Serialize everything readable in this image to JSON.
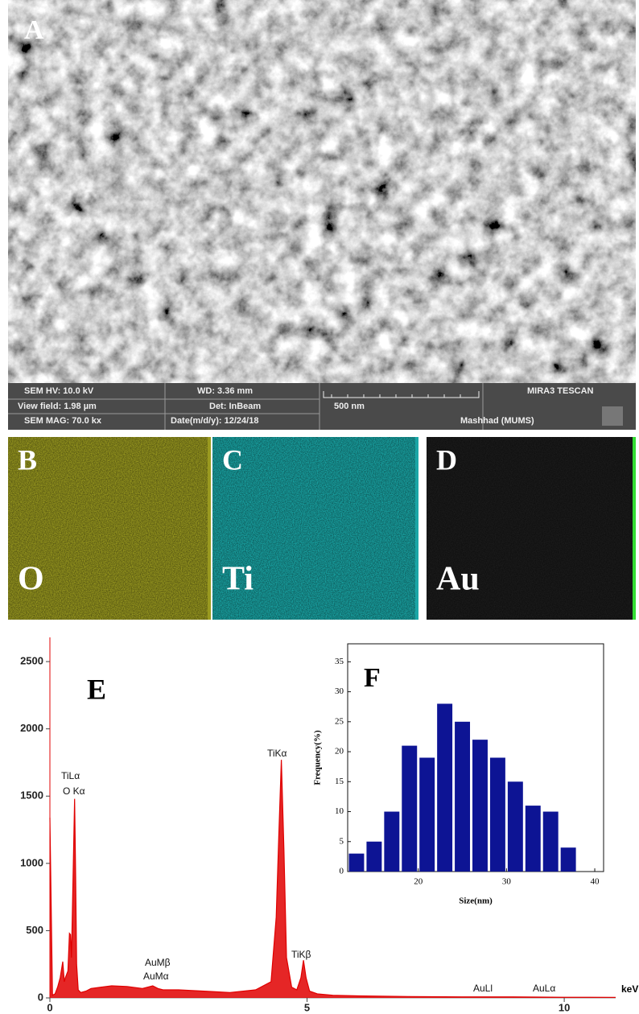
{
  "sem": {
    "label": "A",
    "info": {
      "hv": "SEM HV: 10.0 kV",
      "wd": "WD: 3.36 mm",
      "brand": "MIRA3 TESCAN",
      "view_field": "View field: 1.98 µm",
      "detector": "Det: InBeam",
      "scale": "500 nm",
      "mag": "SEM MAG: 70.0 kx",
      "date": "Date(m/d/y): 12/24/18",
      "lab": "Mashhad (MUMS)"
    }
  },
  "maps": [
    {
      "label": "B",
      "element": "O",
      "color": "#9a9a20"
    },
    {
      "label": "C",
      "element": "Ti",
      "color": "#1aa6a6"
    },
    {
      "label": "D",
      "element": "Au",
      "color": "#1c1c1c"
    }
  ],
  "chart_data": [
    {
      "type": "line",
      "label": "E",
      "color": "#e00000",
      "x_label": "keV",
      "x": [
        0,
        0.05,
        0.1,
        0.15,
        0.2,
        0.25,
        0.28,
        0.3,
        0.35,
        0.38,
        0.4,
        0.42,
        0.45,
        0.48,
        0.5,
        0.52,
        0.55,
        0.6,
        0.7,
        0.8,
        1,
        1.2,
        1.5,
        1.8,
        2,
        2.1,
        2.2,
        2.5,
        3,
        3.5,
        4,
        4.3,
        4.4,
        4.45,
        4.5,
        4.55,
        4.6,
        4.7,
        4.8,
        4.88,
        4.93,
        4.98,
        5.05,
        5.2,
        5.5,
        6,
        7,
        8,
        8.5,
        9,
        9.5,
        10,
        10.5,
        11
      ],
      "values": [
        1340,
        20,
        30,
        80,
        150,
        270,
        120,
        150,
        200,
        480,
        470,
        300,
        900,
        1480,
        900,
        250,
        60,
        40,
        50,
        70,
        80,
        90,
        85,
        70,
        90,
        70,
        60,
        60,
        50,
        40,
        60,
        120,
        600,
        1200,
        1770,
        1100,
        300,
        80,
        60,
        150,
        280,
        150,
        50,
        30,
        20,
        15,
        10,
        8,
        8,
        8,
        6,
        5,
        5,
        4
      ],
      "xlim": [
        0,
        11
      ],
      "xticks": [
        0,
        5,
        10
      ],
      "ylim": [
        0,
        2680
      ],
      "yticks": [
        0,
        500,
        1000,
        1500,
        2000,
        2500
      ],
      "annotations": [
        "TiLα",
        "O Kα",
        "TiKα",
        "AuMβ",
        "AuMα",
        "TiKβ",
        "AuLl",
        "AuLα"
      ]
    },
    {
      "type": "histogram",
      "label": "F",
      "color": "#0d1494",
      "x_label": "Size(nm)",
      "y_label": "Frequency(%)",
      "bins": [
        12,
        14,
        16,
        18,
        20,
        22,
        24,
        26,
        28,
        30,
        32,
        34,
        36,
        38
      ],
      "values": [
        3,
        5,
        10,
        21,
        19,
        28,
        25,
        22,
        19,
        15,
        11,
        10,
        4
      ],
      "xlim": [
        12,
        41
      ],
      "xticks": [
        20,
        30,
        40
      ],
      "ylim": [
        0,
        38
      ],
      "yticks": [
        0,
        5,
        10,
        15,
        20,
        25,
        30,
        35
      ]
    }
  ]
}
